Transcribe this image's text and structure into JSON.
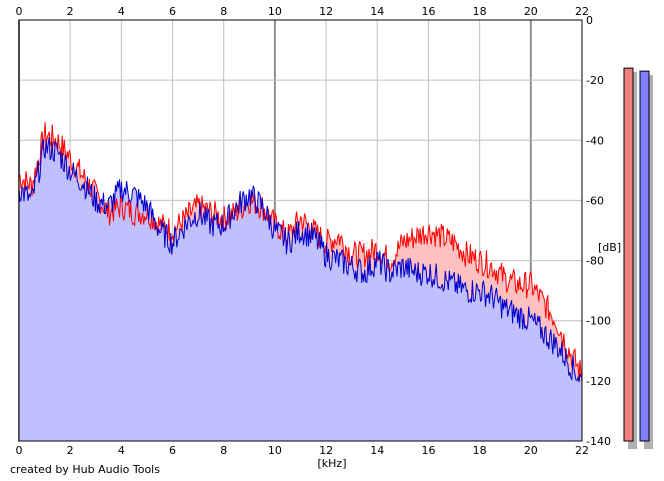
{
  "credit": "created by Hub Audio Tools",
  "colors": {
    "background": "#ffffff",
    "plot_fill": "#c0c0ff",
    "grid": "#c0c0c0",
    "major_grid": "#909090",
    "left_channel": "#ff0000",
    "right_channel": "#0000cc",
    "left_fill": "#ffc0c0",
    "meter_left": "#f08080",
    "meter_right": "#8080ff"
  },
  "chart_data": {
    "type": "area",
    "xlabel": "[kHz]",
    "ylabel": "[dB]",
    "xlim": [
      0,
      22
    ],
    "ylim": [
      -140,
      0
    ],
    "x_ticks": [
      "0",
      "2",
      "4",
      "6",
      "8",
      "10",
      "12",
      "14",
      "16",
      "18",
      "20",
      "22"
    ],
    "y_ticks": [
      "0",
      "-20",
      "-40",
      "-60",
      "-80",
      "-100",
      "-120",
      "-140"
    ],
    "grid": true,
    "series": [
      {
        "color": "#ff0000",
        "x": [
          0,
          0.5,
          1,
          1.5,
          2,
          2.5,
          3,
          3.5,
          4,
          4.5,
          5,
          5.5,
          6,
          6.5,
          7,
          7.5,
          8,
          8.5,
          9,
          9.5,
          10,
          10.5,
          11,
          11.5,
          12,
          12.5,
          13,
          13.5,
          14,
          14.5,
          15,
          15.5,
          16,
          16.5,
          17,
          17.5,
          18,
          18.5,
          19,
          19.5,
          20,
          20.5,
          21,
          21.5,
          22
        ],
        "values": [
          -52,
          -55,
          -38,
          -40,
          -46,
          -52,
          -58,
          -64,
          -62,
          -64,
          -64,
          -68,
          -70,
          -66,
          -62,
          -64,
          -66,
          -64,
          -60,
          -62,
          -68,
          -72,
          -66,
          -70,
          -74,
          -72,
          -78,
          -78,
          -76,
          -80,
          -74,
          -72,
          -70,
          -72,
          -74,
          -78,
          -80,
          -82,
          -86,
          -88,
          -88,
          -94,
          -100,
          -110,
          -118
        ]
      },
      {
        "color": "#0000cc",
        "x": [
          0,
          0.5,
          1,
          1.5,
          2,
          2.5,
          3,
          3.5,
          4,
          4.5,
          5,
          5.5,
          6,
          6.5,
          7,
          7.5,
          8,
          8.5,
          9,
          9.5,
          10,
          10.5,
          11,
          11.5,
          12,
          12.5,
          13,
          13.5,
          14,
          14.5,
          15,
          15.5,
          16,
          16.5,
          17,
          17.5,
          18,
          18.5,
          19,
          19.5,
          20,
          20.5,
          21,
          21.5,
          22
        ],
        "values": [
          -56,
          -60,
          -42,
          -44,
          -50,
          -54,
          -60,
          -62,
          -56,
          -58,
          -62,
          -70,
          -74,
          -68,
          -64,
          -68,
          -68,
          -62,
          -58,
          -62,
          -70,
          -74,
          -70,
          -72,
          -78,
          -80,
          -82,
          -84,
          -80,
          -84,
          -82,
          -84,
          -84,
          -86,
          -88,
          -90,
          -90,
          -92,
          -96,
          -98,
          -100,
          -104,
          -108,
          -114,
          -120
        ]
      }
    ],
    "level_meters": [
      {
        "color": "#f08080",
        "value": -16
      },
      {
        "color": "#8080ff",
        "value": -17
      }
    ]
  }
}
